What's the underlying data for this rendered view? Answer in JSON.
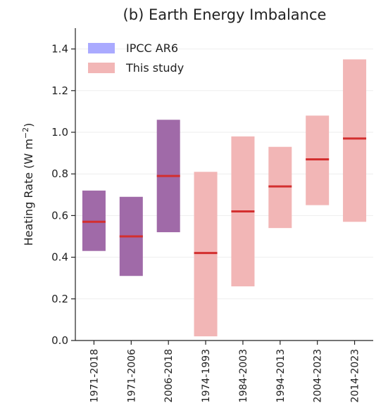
{
  "chart_data": {
    "type": "bar",
    "title": "(b) Earth Energy Imbalance",
    "ylabel": "Heating Rate (W m",
    "ylabel_sup": "−2",
    "ylabel_close": ")",
    "ylim": [
      0.0,
      1.5
    ],
    "yticks": [
      0.0,
      0.2,
      0.4,
      0.6,
      0.8,
      1.0,
      1.2,
      1.4
    ],
    "ytick_labels": [
      "0.0",
      "0.2",
      "0.4",
      "0.6",
      "0.8",
      "1.0",
      "1.2",
      "1.4"
    ],
    "grid": true,
    "legend_position": "top-left",
    "legend": [
      {
        "label": "IPCC AR6",
        "color": "#aaaaff"
      },
      {
        "label": "This study",
        "color": "#f2b6b6"
      }
    ],
    "categories": [
      "1971-2018",
      "1971-2006",
      "2006-2018",
      "1974-1993",
      "1984-2003",
      "1994-2013",
      "2004-2023",
      "2014-2023"
    ],
    "bars": [
      {
        "category": "1971-2018",
        "low": 0.43,
        "high": 0.72,
        "central": 0.57,
        "sources": [
          "IPCC AR6",
          "This study"
        ]
      },
      {
        "category": "1971-2006",
        "low": 0.31,
        "high": 0.69,
        "central": 0.5,
        "sources": [
          "IPCC AR6",
          "This study"
        ]
      },
      {
        "category": "2006-2018",
        "low": 0.52,
        "high": 1.06,
        "central": 0.79,
        "sources": [
          "IPCC AR6",
          "This study"
        ]
      },
      {
        "category": "1974-1993",
        "low": 0.02,
        "high": 0.81,
        "central": 0.42,
        "sources": [
          "This study"
        ]
      },
      {
        "category": "1984-2003",
        "low": 0.26,
        "high": 0.98,
        "central": 0.62,
        "sources": [
          "This study"
        ]
      },
      {
        "category": "1994-2013",
        "low": 0.54,
        "high": 0.93,
        "central": 0.74,
        "sources": [
          "This study"
        ]
      },
      {
        "category": "2004-2023",
        "low": 0.65,
        "high": 1.08,
        "central": 0.87,
        "sources": [
          "This study"
        ]
      },
      {
        "category": "2014-2023",
        "low": 0.57,
        "high": 1.35,
        "central": 0.97,
        "sources": [
          "This study"
        ]
      }
    ],
    "colors": {
      "overlap": "#a06aa8",
      "this_study": "#f2b6b6",
      "central_line": "#d32f2f",
      "axis": "#222222",
      "grid": "#eeeeee"
    }
  }
}
